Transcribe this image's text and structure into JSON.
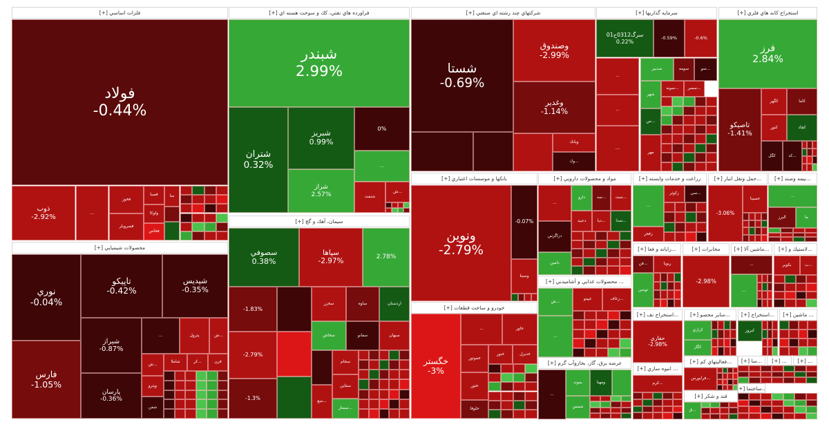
{
  "palette": {
    "vd": "#3e0606",
    "d": "#5a0a0a",
    "dr": "#760c0c",
    "r": "#b01212",
    "br": "#dc1616",
    "dg": "#145a14",
    "g": "#36a836",
    "lg": "#4cc34c"
  },
  "sectors": [
    {
      "title": "فلزات اساسي [+]"
    },
    {
      "title": "فراورده هاي نفتي، كك و سوخت هسته اي [+]"
    },
    {
      "title": "شركتهاي چند رشته اي صنعتي [+]"
    },
    {
      "title": "سرمايه گذاريها [+]"
    },
    {
      "title": "استخراج كانه هاي فلزي [+]"
    },
    {
      "title": "محصولات شيميايي [+]"
    },
    {
      "title": "سيمان، آهك و گچ [+]"
    },
    {
      "title": "بانكها و موسسات اعتباري [+]"
    },
    {
      "title": "مواد و محصولات دارويي [+]"
    },
    {
      "title": "خودرو و ساخت قطعات [+]"
    },
    {
      "title": "... محصولات غذايي و آشاميدني [+]"
    },
    {
      "title": "عرضه برق، گاز، بخاروآب گرم [+]"
    },
    {
      "title": "زراعت و خدمات وابسته [+]"
    },
    {
      "title": "...حمل ونقل انبار [+]"
    },
    {
      "title": "...بيمه وصند [+]"
    },
    {
      "title": "...رايانه و فعا [+]"
    },
    {
      "title": "مخابرات [+]"
    },
    {
      "title": "...ماشين آلا [+]"
    },
    {
      "title": "...لاستيك و [+]"
    },
    {
      "title": "...استخراج نف [+]"
    },
    {
      "title": "...ساير محصو [+]"
    },
    {
      "title": "...استخراج [+]"
    },
    {
      "title": "... ماشين [+]"
    },
    {
      "title": "...فعاليتهاي كم [+]"
    },
    {
      "title": "... انبوه سازي [+]"
    },
    {
      "title": "قند و شكر [+]"
    },
    {
      "title": "...سا [+]"
    },
    {
      "title": "... [+]"
    },
    {
      "title": "... [+]"
    },
    {
      "title": "...ساختما [+]"
    }
  ],
  "tiles": [
    {
      "symbol": "فولاد",
      "change": "-0.44%",
      "tone": "d"
    },
    {
      "symbol": "ذوب",
      "change": "-2.92%",
      "tone": "r"
    },
    {
      "symbol": "...",
      "change": "",
      "tone": "r"
    },
    {
      "symbol": "فخوز",
      "change": "",
      "tone": "r"
    },
    {
      "symbol": "فسرويلر",
      "change": "",
      "tone": "r"
    },
    {
      "symbol": "فصبا",
      "change": "",
      "tone": "r"
    },
    {
      "symbol": "ولوكا",
      "change": "",
      "tone": "r"
    },
    {
      "symbol": "فخاس",
      "change": "",
      "tone": "br"
    },
    {
      "symbol": "سا",
      "change": "",
      "tone": "r"
    },
    {
      "symbol": "",
      "change": "",
      "tone": "dr"
    },
    {
      "symbol": "",
      "change": "",
      "tone": "dg"
    },
    {
      "symbol": "نوري",
      "change": "-0.04%",
      "tone": "vd"
    },
    {
      "symbol": "فارس",
      "change": "-1.05%",
      "tone": "dr"
    },
    {
      "symbol": "تاپيكو",
      "change": "-0.42%",
      "tone": "vd"
    },
    {
      "symbol": "شپديس",
      "change": "-0.35%",
      "tone": "vd"
    },
    {
      "symbol": "شيراز",
      "change": "-0.87%",
      "tone": "vd"
    },
    {
      "symbol": "پارسان",
      "change": "-0.36%",
      "tone": "vd"
    },
    {
      "symbol": "...",
      "change": "",
      "tone": "vd"
    },
    {
      "symbol": "پترول",
      "change": "",
      "tone": "r"
    },
    {
      "symbol": "...ش",
      "change": "",
      "tone": "r"
    },
    {
      "symbol": "...ش",
      "change": "",
      "tone": "r"
    },
    {
      "symbol": "شاملا",
      "change": "",
      "tone": "r"
    },
    {
      "symbol": "...كر",
      "change": "",
      "tone": "r"
    },
    {
      "symbol": "فرن",
      "change": "",
      "tone": "r"
    },
    {
      "symbol": "وپترو",
      "change": "",
      "tone": "r"
    },
    {
      "symbol": "شفن",
      "change": "",
      "tone": "vd"
    },
    {
      "symbol": "شبندر",
      "change": "2.99%",
      "tone": "g"
    },
    {
      "symbol": "شتران",
      "change": "0.32%",
      "tone": "dg"
    },
    {
      "symbol": "شبريز",
      "change": "0.99%",
      "tone": "dg"
    },
    {
      "symbol": "شراز",
      "change": "2.57%",
      "tone": "g"
    },
    {
      "symbol": "",
      "change": "0%",
      "tone": "vd"
    },
    {
      "symbol": "...",
      "change": "",
      "tone": "g"
    },
    {
      "symbol": "شنفت",
      "change": "",
      "tone": "r"
    },
    {
      "symbol": "...ش",
      "change": "",
      "tone": "r"
    },
    {
      "symbol": "سصوفي",
      "change": "0.38%",
      "tone": "dg"
    },
    {
      "symbol": "سپاها",
      "change": "-2.97%",
      "tone": "r"
    },
    {
      "symbol": "",
      "change": "2.78%",
      "tone": "g"
    },
    {
      "symbol": "",
      "change": "-1.83%",
      "tone": "dr"
    },
    {
      "symbol": "",
      "change": "-2.79%",
      "tone": "r"
    },
    {
      "symbol": "",
      "change": "-1.3%",
      "tone": "dr"
    },
    {
      "symbol": "",
      "change": "",
      "tone": "vd"
    },
    {
      "symbol": "",
      "change": "",
      "tone": "br"
    },
    {
      "symbol": "",
      "change": "",
      "tone": "dg"
    },
    {
      "symbol": "سخزر",
      "change": "",
      "tone": "r"
    },
    {
      "symbol": "ساوه",
      "change": "",
      "tone": "dr"
    },
    {
      "symbol": "اردستان",
      "change": "",
      "tone": "dg"
    },
    {
      "symbol": "سخاش",
      "change": "",
      "tone": "g"
    },
    {
      "symbol": "سفانو",
      "change": "",
      "tone": "vd"
    },
    {
      "symbol": "سبهان",
      "change": "",
      "tone": "r"
    },
    {
      "symbol": "",
      "change": "",
      "tone": "vd"
    },
    {
      "symbol": "سجام",
      "change": "",
      "tone": "r"
    },
    {
      "symbol": "سقاين",
      "change": "",
      "tone": "r"
    },
    {
      "symbol": "...سع",
      "change": "",
      "tone": "r"
    },
    {
      "symbol": "...سمتار",
      "change": "",
      "tone": "g"
    },
    {
      "symbol": "شستا",
      "change": "-0.69%",
      "tone": "vd"
    },
    {
      "symbol": "وصندوق",
      "change": "-2.99%",
      "tone": "r"
    },
    {
      "symbol": "وغدير",
      "change": "-1.14%",
      "tone": "dr"
    },
    {
      "symbol": "",
      "change": "",
      "tone": "vd"
    },
    {
      "symbol": "",
      "change": "",
      "tone": "vd"
    },
    {
      "symbol": "",
      "change": "",
      "tone": "r"
    },
    {
      "symbol": "وبانك",
      "change": "",
      "tone": "r"
    },
    {
      "symbol": "...وك",
      "change": "",
      "tone": "vd"
    },
    {
      "symbol": "سرگ0312ح01",
      "change": "0.22%",
      "tone": "dg"
    },
    {
      "symbol": "",
      "change": "-0.59%",
      "tone": "vd"
    },
    {
      "symbol": "",
      "change": "-0.6%",
      "tone": "r"
    },
    {
      "symbol": "...",
      "change": "",
      "tone": "r"
    },
    {
      "symbol": "...",
      "change": "",
      "tone": "r"
    },
    {
      "symbol": "...",
      "change": "",
      "tone": "r"
    },
    {
      "symbol": "صدبير",
      "change": "",
      "tone": "g"
    },
    {
      "symbol": "سومه",
      "change": "",
      "tone": "dr"
    },
    {
      "symbol": "...سو",
      "change": "",
      "tone": "vd"
    },
    {
      "symbol": "شهر",
      "change": "",
      "tone": "g"
    },
    {
      "symbol": "...سوبه",
      "change": "",
      "tone": "r"
    },
    {
      "symbol": "...سمبر",
      "change": "",
      "tone": "r"
    },
    {
      "symbol": "...س",
      "change": "",
      "tone": "dg"
    },
    {
      "symbol": "مهر",
      "change": "",
      "tone": "r"
    },
    {
      "symbol": "فرز",
      "change": "2.84%",
      "tone": "g"
    },
    {
      "symbol": "تاصيكو",
      "change": "-1.41%",
      "tone": "dr"
    },
    {
      "symbol": "كگهر",
      "change": "",
      "tone": "r"
    },
    {
      "symbol": "كاما",
      "change": "",
      "tone": "dr"
    },
    {
      "symbol": "كنور",
      "change": "",
      "tone": "r"
    },
    {
      "symbol": "كچاد",
      "change": "",
      "tone": "dg"
    },
    {
      "symbol": "كگل",
      "change": "",
      "tone": "vd"
    },
    {
      "symbol": "...كد",
      "change": "",
      "tone": "vd"
    },
    {
      "symbol": "ونوين",
      "change": "-2.79%",
      "tone": "r"
    },
    {
      "symbol": "",
      "change": "-0.07%",
      "tone": "vd"
    },
    {
      "symbol": "وسينا",
      "change": "",
      "tone": "r"
    },
    {
      "symbol": "...",
      "change": "",
      "tone": "r"
    },
    {
      "symbol": "دزاگرس",
      "change": "",
      "tone": "vd"
    },
    {
      "symbol": "دامين",
      "change": "",
      "tone": "g"
    },
    {
      "symbol": "دارو",
      "change": "",
      "tone": "g"
    },
    {
      "symbol": "...سد",
      "change": "",
      "tone": "dr"
    },
    {
      "symbol": "...ست",
      "change": "",
      "tone": "r"
    },
    {
      "symbol": "دعبيد",
      "change": "",
      "tone": "r"
    },
    {
      "symbol": "...ديا",
      "change": "",
      "tone": "r"
    },
    {
      "symbol": "...سدا",
      "change": "",
      "tone": "dg"
    },
    {
      "symbol": "...ش",
      "change": "",
      "tone": "g"
    },
    {
      "symbol": "...",
      "change": "",
      "tone": "g"
    },
    {
      "symbol": "غپينو",
      "change": "",
      "tone": "r"
    },
    {
      "symbol": "...زغاف",
      "change": "",
      "tone": "r"
    },
    {
      "symbol": "...",
      "change": "",
      "tone": "vd"
    },
    {
      "symbol": "بموند",
      "change": "",
      "tone": "g"
    },
    {
      "symbol": "ومهنا",
      "change": "",
      "tone": "dg"
    },
    {
      "symbol": "",
      "change": "",
      "tone": "g"
    },
    {
      "symbol": "شمس",
      "change": "",
      "tone": "g"
    },
    {
      "symbol": "خگستر",
      "change": "-3%",
      "tone": "br"
    },
    {
      "symbol": "...",
      "change": "",
      "tone": "r"
    },
    {
      "symbol": "خاور",
      "change": "",
      "tone": "r"
    },
    {
      "symbol": "خموتور",
      "change": "",
      "tone": "r"
    },
    {
      "symbol": "خنور",
      "change": "",
      "tone": "r"
    },
    {
      "symbol": "خديزل",
      "change": "",
      "tone": "r"
    },
    {
      "symbol": "ختور",
      "change": "",
      "tone": "r"
    },
    {
      "symbol": "خلوفا",
      "change": "",
      "tone": "dr"
    },
    {
      "symbol": "...",
      "change": "",
      "tone": "g"
    },
    {
      "symbol": "زفجر",
      "change": "",
      "tone": "r"
    },
    {
      "symbol": "زكوثر",
      "change": "",
      "tone": "r"
    },
    {
      "symbol": "...سي",
      "change": "",
      "tone": "vd"
    },
    {
      "symbol": "",
      "change": "-3.06%",
      "tone": "r"
    },
    {
      "symbol": "حسينا",
      "change": "",
      "tone": "r"
    },
    {
      "symbol": "...",
      "change": "",
      "tone": "g"
    },
    {
      "symbol": "البرز",
      "change": "",
      "tone": "dr"
    },
    {
      "symbol": "ما",
      "change": "",
      "tone": "g"
    },
    {
      "symbol": "...فن",
      "change": "",
      "tone": "dr"
    },
    {
      "symbol": "ريويا",
      "change": "",
      "tone": "r"
    },
    {
      "symbol": "توسن",
      "change": "",
      "tone": "g"
    },
    {
      "symbol": "",
      "change": "-2.98%",
      "tone": "r"
    },
    {
      "symbol": "...",
      "change": "",
      "tone": "dr"
    },
    {
      "symbol": "...",
      "change": "",
      "tone": "g"
    },
    {
      "symbol": "بكوير",
      "change": "",
      "tone": "r"
    },
    {
      "symbol": "...ب",
      "change": "",
      "tone": "r"
    },
    {
      "symbol": "حفاري",
      "change": "-2.98%",
      "tone": "r"
    },
    {
      "symbol": "كرازي",
      "change": "",
      "tone": "g"
    },
    {
      "symbol": "كگاز",
      "change": "",
      "tone": "g"
    },
    {
      "symbol": "كبروز",
      "change": "",
      "tone": "dg"
    },
    {
      "symbol": "...فرابورس",
      "change": "",
      "tone": "r"
    },
    {
      "symbol": "...كرم",
      "change": "",
      "tone": "r"
    },
    {
      "symbol": "...ق",
      "change": "",
      "tone": "g"
    }
  ]
}
